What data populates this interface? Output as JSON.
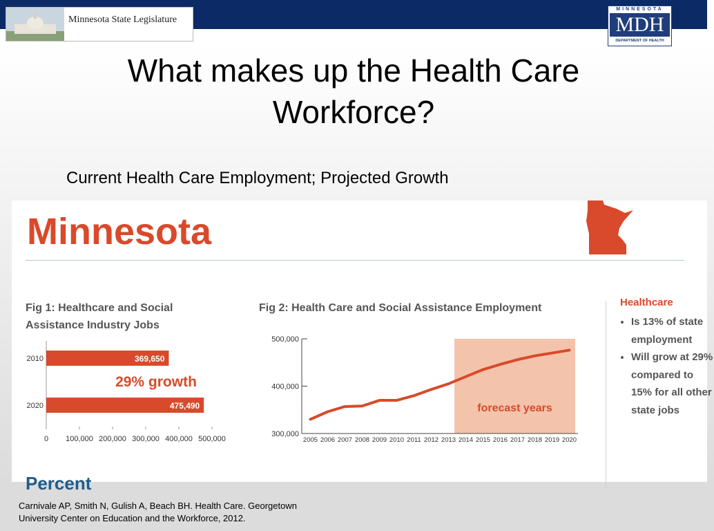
{
  "header": {
    "legislature_name": "Minnesota State Legislature",
    "mdh_top": "MINNESOTA",
    "mdh_mid": "MDH",
    "mdh_bottom": "DEPARTMENT OF HEALTH"
  },
  "slide": {
    "title": "What makes up the Health Care Workforce?",
    "subtitle": "Current Health Care Employment; Projected Growth"
  },
  "panel": {
    "state_name": "Minnesota",
    "section_cut_text": "Percent"
  },
  "sidebar": {
    "heading": "Healthcare",
    "bullets": [
      "Is 13% of state employment",
      "Will grow at 29% compared to 15% for all other state jobs"
    ]
  },
  "citation": {
    "line1": "Carnivale AP, Smith N, Gulish A, Beach BH. Health Care. Georgetown",
    "line2": "University Center on Education and the Workforce, 2012."
  },
  "colors": {
    "accent": "#d84a2b",
    "forecast_fill": "#f4c3ab",
    "navy": "#0c2a66"
  },
  "chart_data": [
    {
      "type": "bar",
      "title_line1": "Fig 1: Healthcare and Social",
      "title_line2": "Assistance Industry Jobs",
      "categories": [
        "2010",
        "2020"
      ],
      "values": [
        369650,
        475490
      ],
      "value_labels": [
        "369,650",
        "475,490"
      ],
      "xlim": [
        0,
        500000
      ],
      "x_ticks": [
        0,
        100000,
        200000,
        300000,
        400000,
        500000
      ],
      "x_tick_labels": [
        "0",
        "100,000",
        "200,000",
        "300,000",
        "400,000",
        "500,000"
      ],
      "annotation": "29% growth",
      "orientation": "horizontal"
    },
    {
      "type": "line",
      "title": "Fig 2: Health Care and Social Assistance Employment",
      "x": [
        "2005",
        "2006",
        "2007",
        "2008",
        "2009",
        "2010",
        "2011",
        "2012",
        "2013",
        "2014",
        "2015",
        "2016",
        "2017",
        "2018",
        "2019",
        "2020"
      ],
      "values": [
        330000,
        346000,
        357000,
        358000,
        370000,
        370000,
        380000,
        393000,
        405000,
        420000,
        435000,
        446000,
        456000,
        464000,
        470000,
        476000
      ],
      "ylim": [
        300000,
        500000
      ],
      "y_ticks": [
        300000,
        400000,
        500000
      ],
      "y_tick_labels": [
        "300,000",
        "400,000",
        "500,000"
      ],
      "forecast_range": [
        "2014",
        "2020"
      ],
      "forecast_label": "forecast years"
    }
  ]
}
